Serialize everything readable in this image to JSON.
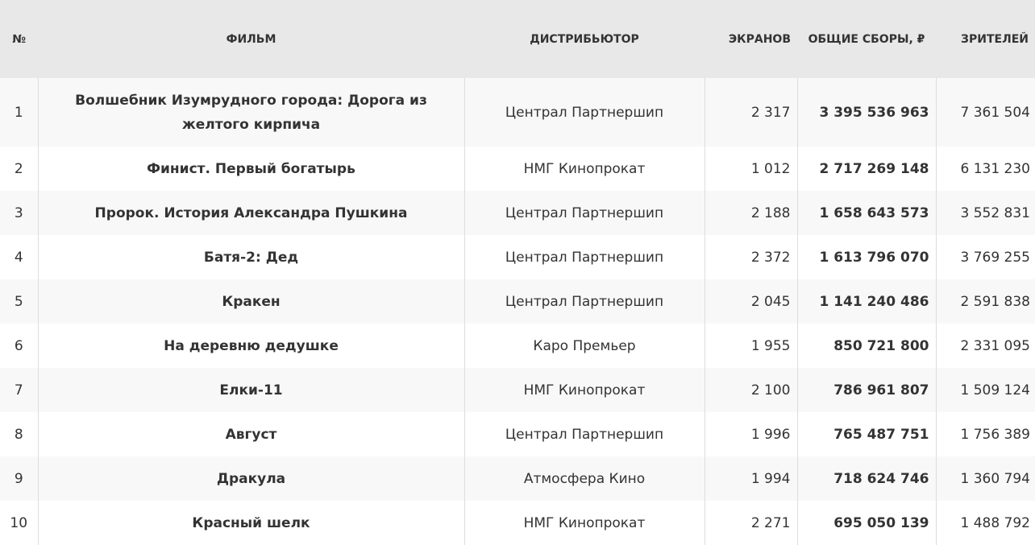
{
  "headers": {
    "rank": "№",
    "film": "ФИЛЬМ",
    "distributor": "ДИСТРИБЬЮТОР",
    "screens": "ЭКРАНОВ",
    "gross": "ОБЩИЕ СБОРЫ, ₽",
    "viewers": "ЗРИТЕЛЕЙ"
  },
  "rows": [
    {
      "rank": "1",
      "film": "Волшебник Изумрудного города: Дорога из желтого кирпича",
      "distributor": "Централ Партнершип",
      "screens": "2 317",
      "gross": "3 395 536 963",
      "viewers": "7 361 504"
    },
    {
      "rank": "2",
      "film": "Финист. Первый богатырь",
      "distributor": "НМГ Кинопрокат",
      "screens": "1 012",
      "gross": "2 717 269 148",
      "viewers": "6 131 230"
    },
    {
      "rank": "3",
      "film": "Пророк. История Александра Пушкина",
      "distributor": "Централ Партнершип",
      "screens": "2 188",
      "gross": "1 658 643 573",
      "viewers": "3 552 831"
    },
    {
      "rank": "4",
      "film": "Батя-2: Дед",
      "distributor": "Централ Партнершип",
      "screens": "2 372",
      "gross": "1 613 796 070",
      "viewers": "3 769 255"
    },
    {
      "rank": "5",
      "film": "Кракен",
      "distributor": "Централ Партнершип",
      "screens": "2 045",
      "gross": "1 141 240 486",
      "viewers": "2 591 838"
    },
    {
      "rank": "6",
      "film": "На деревню дедушке",
      "distributor": "Каро Премьер",
      "screens": "1 955",
      "gross": "850 721 800",
      "viewers": "2 331 095"
    },
    {
      "rank": "7",
      "film": "Елки-11",
      "distributor": "НМГ Кинопрокат",
      "screens": "2 100",
      "gross": "786 961 807",
      "viewers": "1 509 124"
    },
    {
      "rank": "8",
      "film": "Август",
      "distributor": "Централ Партнершип",
      "screens": "1 996",
      "gross": "765 487 751",
      "viewers": "1 756 389"
    },
    {
      "rank": "9",
      "film": "Дракула",
      "distributor": "Атмосфера Кино",
      "screens": "1 994",
      "gross": "718 624 746",
      "viewers": "1 360 794"
    },
    {
      "rank": "10",
      "film": "Красный шелк",
      "distributor": "НМГ Кинопрокат",
      "screens": "2 271",
      "gross": "695 050 139",
      "viewers": "1 488 792"
    }
  ]
}
